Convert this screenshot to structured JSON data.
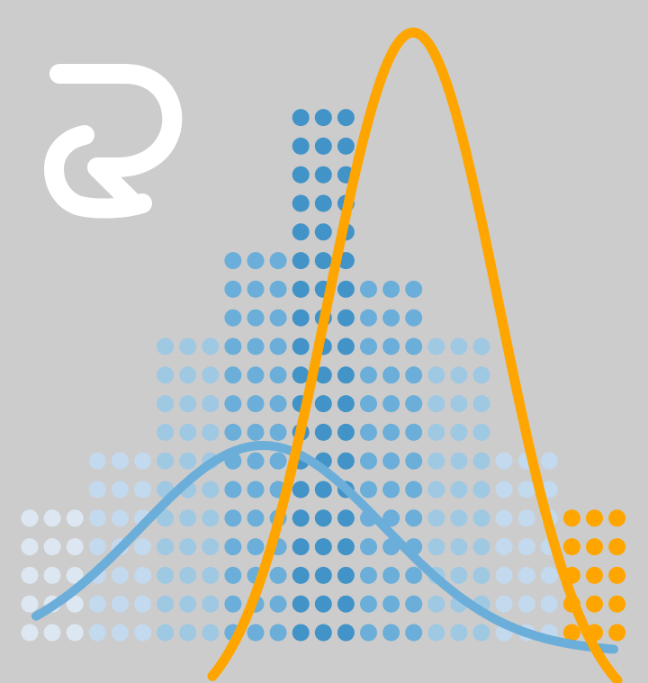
{
  "background_color": "#cccccc",
  "logo": {
    "icon": "r-logo-icon",
    "color": "#ffffff"
  },
  "dot_columns": {
    "heights": [
      5,
      5,
      5,
      7,
      7,
      7,
      11,
      11,
      11,
      14,
      14,
      14,
      19,
      19,
      19,
      13,
      13,
      13,
      11,
      11,
      11,
      7,
      7,
      7,
      5,
      5,
      5
    ],
    "tones": [
      0,
      0,
      0,
      1,
      1,
      1,
      2,
      2,
      2,
      3,
      3,
      3,
      4,
      4,
      4,
      3,
      3,
      3,
      2,
      2,
      2,
      1,
      1,
      1,
      5,
      5,
      5
    ],
    "palette": [
      "#dde7f2",
      "#c3d9ee",
      "#9fc8e3",
      "#6aaed9",
      "#4293c7",
      "#ffa500"
    ]
  },
  "curves": [
    {
      "name": "",
      "color": "#6aaed9",
      "kind": "normal-wide"
    },
    {
      "name": "",
      "color": "#ffa500",
      "kind": "normal-narrow"
    }
  ]
}
